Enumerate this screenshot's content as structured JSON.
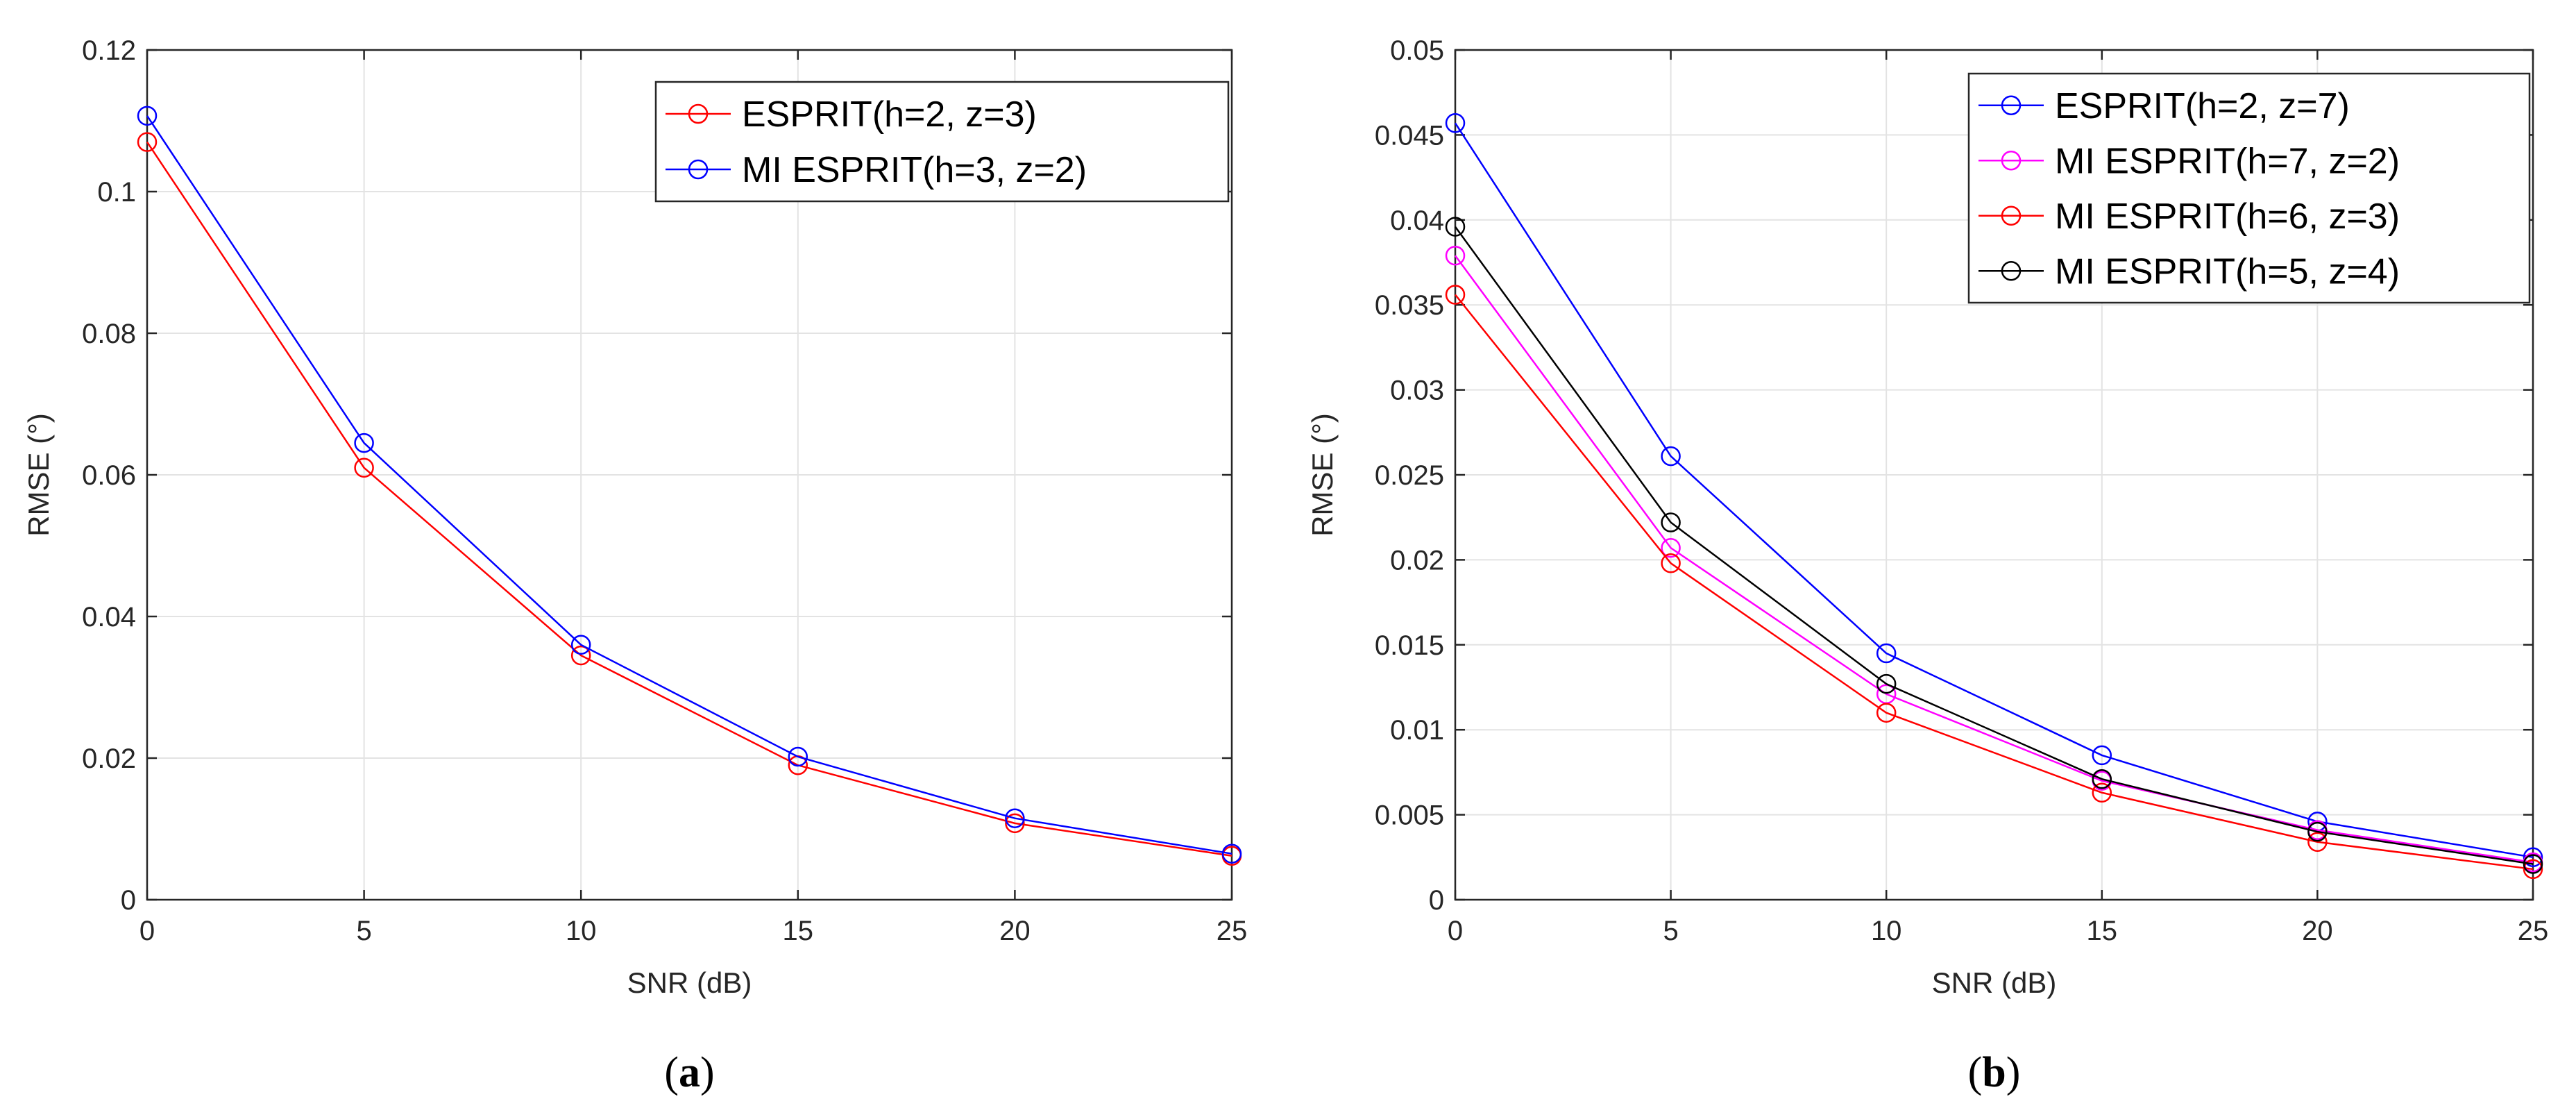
{
  "chart_data": [
    {
      "type": "line",
      "panel": "a",
      "panel_label": "a",
      "xlabel": "SNR (dB)",
      "ylabel": "RMSE (°)",
      "xlim": [
        0,
        25
      ],
      "ylim": [
        0,
        0.12
      ],
      "xticks": [
        0,
        5,
        10,
        15,
        20,
        25
      ],
      "xtick_labels": [
        "0",
        "5",
        "10",
        "15",
        "20",
        "25"
      ],
      "yticks": [
        0,
        0.02,
        0.04,
        0.06,
        0.08,
        0.1,
        0.12
      ],
      "ytick_labels": [
        "0",
        "0.02",
        "0.04",
        "0.06",
        "0.08",
        "0.1",
        "0.12"
      ],
      "grid": true,
      "legend_position": "top-right",
      "x": [
        0,
        5,
        10,
        15,
        20,
        25
      ],
      "series": [
        {
          "name": "ESPRIT(h=2, z=3)",
          "color": "#ff0000",
          "values": [
            0.107,
            0.061,
            0.0345,
            0.019,
            0.0108,
            0.0062
          ]
        },
        {
          "name": "MI ESPRIT(h=3, z=2)",
          "color": "#0000ff",
          "values": [
            0.1107,
            0.0645,
            0.036,
            0.0202,
            0.0115,
            0.0065
          ]
        }
      ]
    },
    {
      "type": "line",
      "panel": "b",
      "panel_label": "b",
      "xlabel": "SNR (dB)",
      "ylabel": "RMSE (°)",
      "xlim": [
        0,
        25
      ],
      "ylim": [
        0,
        0.05
      ],
      "xticks": [
        0,
        5,
        10,
        15,
        20,
        25
      ],
      "xtick_labels": [
        "0",
        "5",
        "10",
        "15",
        "20",
        "25"
      ],
      "yticks": [
        0,
        0.005,
        0.01,
        0.015,
        0.02,
        0.025,
        0.03,
        0.035,
        0.04,
        0.045,
        0.05
      ],
      "ytick_labels": [
        "0",
        "0.005",
        "0.01",
        "0.015",
        "0.02",
        "0.025",
        "0.03",
        "0.035",
        "0.04",
        "0.045",
        "0.05"
      ],
      "grid": true,
      "legend_position": "top-right",
      "x": [
        0,
        5,
        10,
        15,
        20,
        25
      ],
      "series": [
        {
          "name": "ESPRIT(h=2, z=7)",
          "color": "#0000ff",
          "values": [
            0.0457,
            0.0261,
            0.0145,
            0.0085,
            0.0046,
            0.0025
          ]
        },
        {
          "name": "MI ESPRIT(h=7, z=2)",
          "color": "#ff00ff",
          "values": [
            0.0379,
            0.0207,
            0.0121,
            0.007,
            0.0041,
            0.0022
          ]
        },
        {
          "name": "MI ESPRIT(h=6, z=3)",
          "color": "#ff0000",
          "values": [
            0.0356,
            0.0198,
            0.011,
            0.0063,
            0.0034,
            0.0018
          ]
        },
        {
          "name": "MI ESPRIT(h=5, z=4)",
          "color": "#000000",
          "values": [
            0.0396,
            0.0222,
            0.0127,
            0.0071,
            0.004,
            0.0021
          ]
        }
      ]
    }
  ]
}
